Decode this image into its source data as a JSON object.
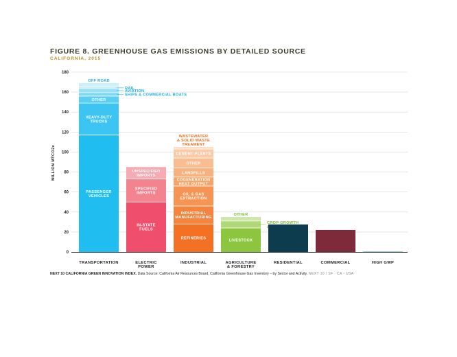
{
  "header": {
    "title": "FIGURE 8. GREENHOUSE GAS EMISSIONS BY DETAILED SOURCE",
    "subtitle": "CALIFORNIA, 2015"
  },
  "footer": {
    "source_bold": "NEXT 10 CALIFORNIA GREEN INNOVATION INDEX. ",
    "source_text": "Data Source: California Air Resources Board, California Greenhouse Gas Inventory – by Sector and Activity.",
    "source_tag": " NEXT 10 / SF · CA · USA"
  },
  "chart_data": {
    "type": "bar",
    "stacked": true,
    "title": "FIGURE 8. GREENHOUSE GAS EMISSIONS BY DETAILED SOURCE",
    "subtitle": "CALIFORNIA, 2015",
    "ylabel": "MILLION MTCO2e",
    "xlabel": "",
    "ylim": [
      0,
      180
    ],
    "yticks": [
      0,
      20,
      40,
      60,
      80,
      100,
      120,
      140,
      160,
      180
    ],
    "grid": true,
    "legend": "none",
    "categories": [
      {
        "label": [
          "TRANSPORTATION"
        ]
      },
      {
        "label": [
          "ELECTRIC",
          "POWER"
        ]
      },
      {
        "label": [
          "INDUSTRIAL"
        ]
      },
      {
        "label": [
          "AGRICULTURE",
          "& FORESTRY"
        ]
      },
      {
        "label": [
          "RESIDENTIAL"
        ]
      },
      {
        "label": [
          "COMMERCIAL"
        ]
      },
      {
        "label": [
          "HIGH GWP"
        ]
      }
    ],
    "bars": [
      {
        "category": "TRANSPORTATION",
        "segments": [
          {
            "label": [
              "PASSENGER",
              "VEHICLES"
            ],
            "value": 117,
            "color": "#1fbdf0",
            "placement": "inside"
          },
          {
            "label": [
              "HEAVY-DUTY",
              "TRUCKS"
            ],
            "value": 32,
            "color": "#3cc5f2",
            "placement": "inside"
          },
          {
            "label": [
              "OTHER"
            ],
            "value": 7,
            "color": "#5ccef4",
            "placement": "inside"
          },
          {
            "label": [
              "SHIPS & COMMERCIAL BOATS"
            ],
            "value": 3.5,
            "color": "#7fd9f6",
            "placement": "right"
          },
          {
            "label": [
              "AVIATION"
            ],
            "value": 4,
            "color": "#97e0f7",
            "placement": "right"
          },
          {
            "label": [
              "RAIL"
            ],
            "value": 1.5,
            "color": "#b4e9f9",
            "placement": "right"
          },
          {
            "label": [
              "OFF ROAD"
            ],
            "value": 4,
            "color": "#cdf1fb",
            "placement": "above"
          }
        ]
      },
      {
        "category": "ELECTRIC POWER",
        "segments": [
          {
            "label": [
              "IN-STATE",
              "FUELS"
            ],
            "value": 50,
            "color": "#ef4f6c",
            "placement": "inside"
          },
          {
            "label": [
              "SPECIFIED",
              "IMPORTS"
            ],
            "value": 23,
            "color": "#f2838f",
            "placement": "inside"
          },
          {
            "label": [
              "UNSPECIFIED",
              "IMPORTS"
            ],
            "value": 12,
            "color": "#f6aab1",
            "placement": "inside"
          }
        ]
      },
      {
        "category": "INDUSTRIAL",
        "segments": [
          {
            "label": [
              "REFINERIES"
            ],
            "value": 28,
            "color": "#f47124",
            "placement": "inside"
          },
          {
            "label": [
              "INDUSTRIAL",
              "MANUFACTURING"
            ],
            "value": 18,
            "color": "#f5843e",
            "placement": "inside"
          },
          {
            "label": [
              "OIL & GAS",
              "EXTRACTION"
            ],
            "value": 20,
            "color": "#f69453",
            "placement": "inside"
          },
          {
            "label": [
              "COGENERATION",
              "HEAT OUTPUT"
            ],
            "value": 9,
            "color": "#f7a467",
            "placement": "inside"
          },
          {
            "label": [
              "LANDFILLS"
            ],
            "value": 9,
            "color": "#f8b17c",
            "placement": "inside"
          },
          {
            "label": [
              "OTHER"
            ],
            "value": 10,
            "color": "#f9bd91",
            "placement": "inside"
          },
          {
            "label": [
              "CEMENT PLANTS"
            ],
            "value": 9,
            "color": "#fbcaa6",
            "placement": "inside"
          },
          {
            "label": [
              "WASTEWATER",
              "& SOLID WASTE",
              "TREAMENT"
            ],
            "value": 2,
            "color": "#fcdabf",
            "placement": "above"
          }
        ]
      },
      {
        "category": "AGRICULTURE & FORESTRY",
        "segments": [
          {
            "label": [
              "LIVESTOCK"
            ],
            "value": 24,
            "color": "#8cc63f",
            "placement": "inside"
          },
          {
            "label": [
              "CROP GROWTH",
              "& HARVESTING"
            ],
            "value": 7,
            "color": "#b0d77a",
            "placement": "right"
          },
          {
            "label": [
              "OTHER"
            ],
            "value": 4,
            "color": "#cfe6ab",
            "placement": "above"
          }
        ]
      },
      {
        "category": "RESIDENTIAL",
        "segments": [
          {
            "label": [],
            "value": 27.5,
            "color": "#0d3c4f",
            "placement": "none"
          }
        ]
      },
      {
        "category": "COMMERCIAL",
        "segments": [
          {
            "label": [],
            "value": 22,
            "color": "#7f2a3a",
            "placement": "none"
          }
        ]
      },
      {
        "category": "HIGH GWP",
        "segments": [
          {
            "label": [],
            "value": 0.3,
            "color": "#1a9a96",
            "placement": "none"
          }
        ]
      }
    ]
  },
  "colors": {
    "text_dark": "#222222",
    "title": "#3c3c2c",
    "subtitle": "#c08a1e",
    "grid": "#d4d4d4",
    "axis": "#333333"
  }
}
